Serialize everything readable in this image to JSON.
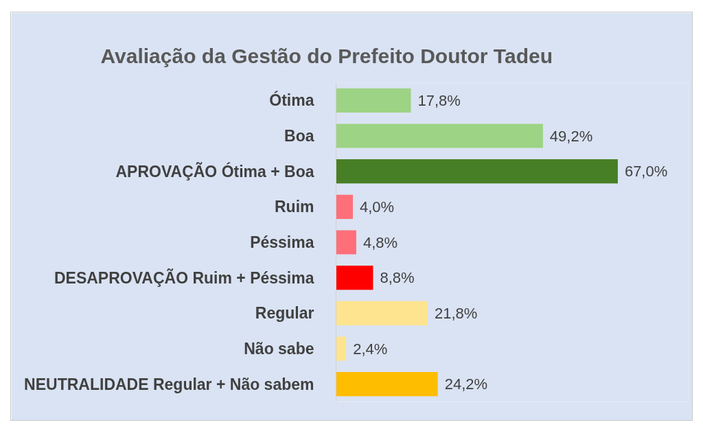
{
  "chart_data": {
    "type": "bar",
    "orientation": "horizontal",
    "title": "Avaliação da Gestão do Prefeito Doutor Tadeu",
    "categories": [
      "Ótima",
      "Boa",
      "APROVAÇÃO Ótima + Boa",
      "Ruim",
      "Péssima",
      "DESAPROVAÇÃO Ruim + Péssima",
      "Regular",
      "Não sabe",
      "NEUTRALIDADE Regular + Não sabem"
    ],
    "values": [
      17.8,
      49.2,
      67.0,
      4.0,
      4.8,
      8.8,
      21.8,
      2.4,
      24.2
    ],
    "colors": [
      "#9dd384",
      "#9dd384",
      "#477f26",
      "#ff6f7a",
      "#ff6f7a",
      "#ff0000",
      "#ffe48f",
      "#ffe48f",
      "#ffbd00"
    ],
    "value_labels": [
      "17,8%",
      "49,2%",
      "67,0%",
      "4,0%",
      "4,8%",
      "8,8%",
      "21,8%",
      "2,4%",
      "24,2%"
    ],
    "grid": false
  }
}
